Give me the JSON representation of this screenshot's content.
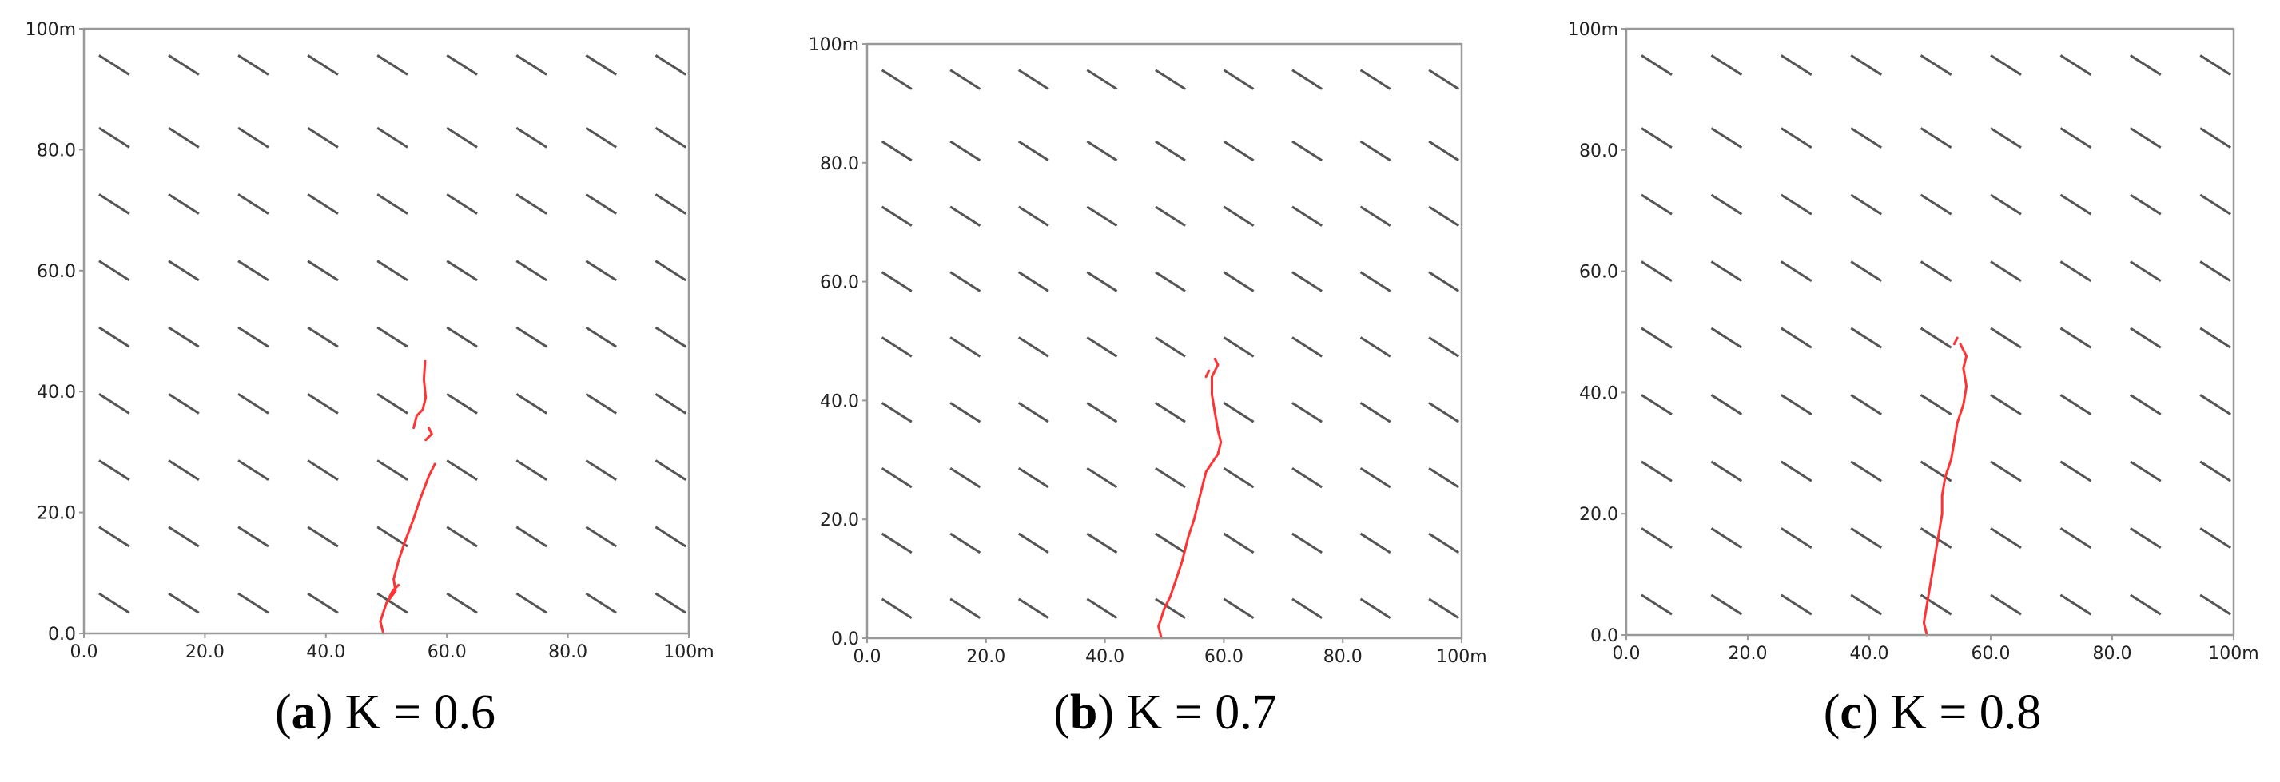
{
  "chart_data": [
    {
      "type": "line",
      "title": "",
      "caption": {
        "letter": "a",
        "text": "K = 0.6"
      },
      "xlim": [
        0,
        100
      ],
      "ylim": [
        0,
        100
      ],
      "xticks": [
        "0.0",
        "20.0",
        "40.0",
        "60.0",
        "80.0",
        "100m"
      ],
      "yticks": [
        "0.0",
        "20.0",
        "40.0",
        "60.0",
        "80.0",
        "100m"
      ],
      "background_fractures": {
        "x_centers": [
          5,
          16.5,
          28,
          39.5,
          51,
          62.5,
          74,
          85.5,
          97
        ],
        "y_centers": [
          5,
          16,
          27,
          38,
          49,
          60,
          71,
          82,
          94
        ],
        "dx": 2.5,
        "dy": 1.6
      },
      "series": [
        {
          "values": [
            [
              49.5,
              0
            ],
            [
              49,
              2
            ],
            [
              50,
              5
            ],
            [
              51.5,
              7
            ],
            [
              51.2,
              9
            ],
            [
              52,
              12
            ],
            [
              53,
              15
            ],
            [
              54.5,
              19
            ],
            [
              55.5,
              22
            ],
            [
              57,
              26
            ],
            [
              58,
              28
            ]
          ]
        },
        {
          "values": [
            [
              50.5,
              6
            ],
            [
              51,
              7
            ],
            [
              52,
              8
            ]
          ]
        },
        {
          "values": [
            [
              54.5,
              34
            ],
            [
              55,
              36
            ],
            [
              56,
              37
            ],
            [
              56.5,
              39
            ],
            [
              56.2,
              42
            ],
            [
              56.4,
              45
            ]
          ]
        },
        {
          "values": [
            [
              56.5,
              32
            ],
            [
              57.5,
              33
            ],
            [
              57,
              34
            ]
          ]
        }
      ]
    },
    {
      "type": "line",
      "title": "",
      "caption": {
        "letter": "b",
        "text": "K = 0.7"
      },
      "xlim": [
        0,
        100
      ],
      "ylim": [
        0,
        100
      ],
      "xticks": [
        "0.0",
        "20.0",
        "40.0",
        "60.0",
        "80.0",
        "100m"
      ],
      "yticks": [
        "0.0",
        "20.0",
        "40.0",
        "60.0",
        "80.0",
        "100m"
      ],
      "background_fractures": {
        "x_centers": [
          5,
          16.5,
          28,
          39.5,
          51,
          62.5,
          74,
          85.5,
          97
        ],
        "y_centers": [
          5,
          16,
          27,
          38,
          49,
          60,
          71,
          82,
          94
        ],
        "dx": 2.5,
        "dy": 1.6
      },
      "series": [
        {
          "values": [
            [
              49.5,
              0
            ],
            [
              49,
              2
            ],
            [
              50,
              5
            ],
            [
              51,
              7
            ],
            [
              52,
              10
            ],
            [
              53,
              13
            ],
            [
              54,
              17
            ],
            [
              55,
              20
            ],
            [
              56,
              24
            ],
            [
              57,
              28
            ],
            [
              59,
              31
            ],
            [
              59.5,
              33
            ],
            [
              59,
              35
            ],
            [
              58.5,
              38
            ],
            [
              58,
              41
            ],
            [
              58,
              44
            ],
            [
              59,
              46
            ],
            [
              58.5,
              47
            ]
          ]
        },
        {
          "values": [
            [
              57,
              44
            ],
            [
              57.5,
              45
            ]
          ]
        }
      ]
    },
    {
      "type": "line",
      "title": "",
      "caption": {
        "letter": "c",
        "text": "K = 0.8"
      },
      "xlim": [
        0,
        100
      ],
      "ylim": [
        0,
        100
      ],
      "xticks": [
        "0.0",
        "20.0",
        "40.0",
        "60.0",
        "80.0",
        "100m"
      ],
      "yticks": [
        "0.0",
        "20.0",
        "40.0",
        "60.0",
        "80.0",
        "100m"
      ],
      "background_fractures": {
        "x_centers": [
          5,
          16.5,
          28,
          39.5,
          51,
          62.5,
          74,
          85.5,
          97
        ],
        "y_centers": [
          5,
          16,
          27,
          38,
          49,
          60,
          71,
          82,
          94
        ],
        "dx": 2.5,
        "dy": 1.6
      },
      "series": [
        {
          "values": [
            [
              49.5,
              0
            ],
            [
              49,
              2
            ],
            [
              49.5,
              5
            ],
            [
              50,
              8
            ],
            [
              50.5,
              11
            ],
            [
              51,
              14
            ],
            [
              51.5,
              17
            ],
            [
              52,
              20
            ],
            [
              52,
              23
            ],
            [
              52.5,
              26
            ],
            [
              53.5,
              29
            ],
            [
              54,
              32
            ],
            [
              54.5,
              35
            ],
            [
              55.5,
              38
            ],
            [
              56,
              41
            ],
            [
              55.5,
              44
            ],
            [
              56,
              46
            ],
            [
              55,
              48
            ]
          ]
        },
        {
          "values": [
            [
              54,
              48
            ],
            [
              54.5,
              49
            ]
          ]
        }
      ]
    }
  ]
}
